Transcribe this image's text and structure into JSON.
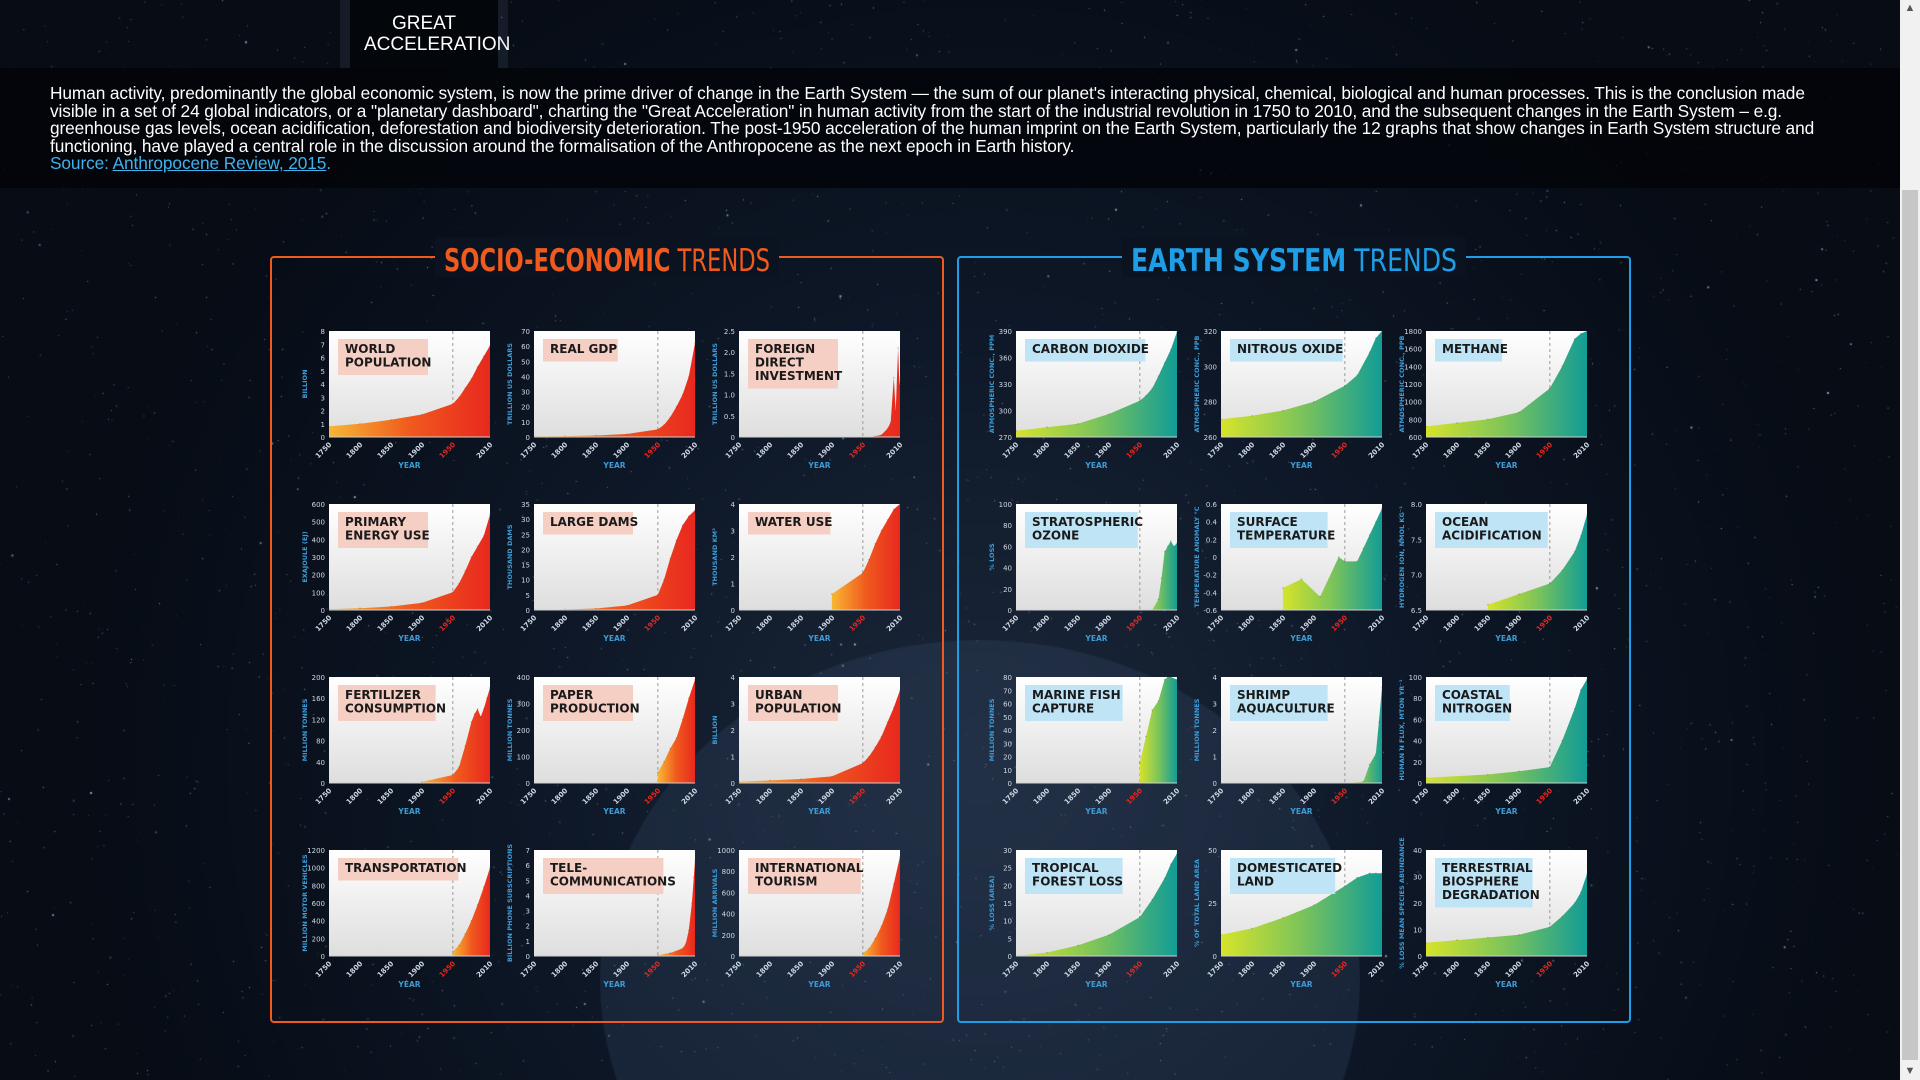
{
  "tab": {
    "title": "GREAT ACCELERATION"
  },
  "intro": {
    "text": "Human activity, predominantly the global economic system, is now the prime driver of change in the Earth System — the sum of our planet's interacting physical, chemical, biological and human processes. This is the conclusion made visible in a set of 24 global indicators, or a \"planetary dashboard\", charting the \"Great Acceleration\" in human activity from the start of the industrial revolution in 1750 to 2010, and the subsequent changes in the Earth System – e.g. greenhouse gas levels, ocean acidification, deforestation and biodiversity deterioration. The post-1950 acceleration of the human imprint on the Earth System, particularly the 12 graphs that show changes in Earth System structure and functioning, have played a central role in the discussion around the formalisation of the Anthropocene as the next epoch in Earth history.",
    "source_prefix": "Source: ",
    "source_link": "Anthropocene Review, 2015",
    "source_suffix": "."
  },
  "x_axis": {
    "label": "YEAR",
    "ticks": [
      "1750",
      "1800",
      "1850",
      "1900",
      "1950",
      "2010"
    ],
    "highlight_tick": "1950"
  },
  "colors": {
    "socio_accent": "#f05a1e",
    "earth_accent": "#1e9ee6",
    "socio_title_bg": "#f5cfc3",
    "earth_title_bg": "#bfe4f6",
    "socio_fill": [
      "#f7b733",
      "#f05a1e",
      "#e8281e"
    ],
    "earth_fill": [
      "#d6e32a",
      "#7cc45a",
      "#129c96"
    ]
  },
  "chart_data": [
    {
      "group": "SOCIO-ECONOMIC TRENDS",
      "group_bold": "SOCIO-ECONOMIC",
      "group_light": " TRENDS",
      "theme": "socio",
      "charts": [
        {
          "title": [
            "WORLD",
            "POPULATION"
          ],
          "type": "area",
          "ylabel": "BILLION",
          "yticks": [
            "0",
            "1",
            "2",
            "3",
            "4",
            "5",
            "6",
            "7",
            "8"
          ],
          "ylim": [
            0,
            8
          ],
          "x": [
            1750,
            1800,
            1850,
            1900,
            1950,
            1960,
            1970,
            1980,
            1990,
            2000,
            2010
          ],
          "y": [
            0.8,
            1.0,
            1.3,
            1.7,
            2.5,
            3.0,
            3.7,
            4.4,
            5.3,
            6.1,
            6.9
          ]
        },
        {
          "title": [
            "REAL GDP"
          ],
          "type": "area",
          "ylabel": "TRILLION US DOLLARS",
          "yticks": [
            "0",
            "10",
            "20",
            "30",
            "40",
            "50",
            "60",
            "70"
          ],
          "ylim": [
            0,
            70
          ],
          "x": [
            1750,
            1800,
            1850,
            1900,
            1950,
            1960,
            1970,
            1980,
            1990,
            2000,
            2010
          ],
          "y": [
            0.4,
            0.6,
            1.0,
            2.0,
            5.0,
            8.0,
            13,
            20,
            28,
            40,
            62
          ]
        },
        {
          "title": [
            "FOREIGN",
            "DIRECT",
            "INVESTMENT"
          ],
          "type": "area",
          "ylabel": "TRILLION US DOLLARS",
          "yticks": [
            "0",
            "0.5",
            "1.0",
            "1.5",
            "2.0",
            "2.5"
          ],
          "ylim": [
            0,
            2.5
          ],
          "x": [
            1750,
            1950,
            1970,
            1980,
            1990,
            1995,
            2000,
            2003,
            2007,
            2009,
            2010
          ],
          "y": [
            0,
            0,
            0.02,
            0.05,
            0.2,
            0.35,
            1.4,
            0.6,
            2.1,
            1.2,
            1.4
          ]
        },
        {
          "title": [
            "PRIMARY",
            "ENERGY USE"
          ],
          "type": "area",
          "ylabel": "EXAJOULE (EJ)",
          "yticks": [
            "0",
            "100",
            "200",
            "300",
            "400",
            "500",
            "600"
          ],
          "ylim": [
            0,
            600
          ],
          "x": [
            1750,
            1800,
            1850,
            1900,
            1950,
            1960,
            1970,
            1980,
            1990,
            2000,
            2010
          ],
          "y": [
            5,
            10,
            20,
            40,
            100,
            150,
            220,
            300,
            360,
            420,
            540
          ]
        },
        {
          "title": [
            "LARGE DAMS"
          ],
          "type": "area",
          "ylabel": "THOUSAND DAMS",
          "yticks": [
            "0",
            "5",
            "10",
            "15",
            "20",
            "25",
            "30",
            "35"
          ],
          "ylim": [
            0,
            35
          ],
          "x": [
            1750,
            1800,
            1850,
            1900,
            1950,
            1960,
            1970,
            1980,
            1990,
            2000,
            2010
          ],
          "y": [
            0.1,
            0.2,
            0.5,
            1.5,
            5.0,
            10,
            17,
            23,
            28,
            31,
            33
          ]
        },
        {
          "title": [
            "WATER USE"
          ],
          "type": "area",
          "ylabel": "THOUSAND KM³",
          "yticks": [
            "0",
            "1",
            "2",
            "3",
            "4"
          ],
          "ylim": [
            0,
            4
          ],
          "x": [
            1900,
            1950,
            1960,
            1970,
            1980,
            1990,
            2000,
            2010
          ],
          "y": [
            0.6,
            1.4,
            1.9,
            2.5,
            3.0,
            3.4,
            3.8,
            4.0
          ]
        },
        {
          "title": [
            "FERTILIZER",
            "CONSUMPTION"
          ],
          "type": "area",
          "ylabel": "MILLION TONNES",
          "yticks": [
            "0",
            "40",
            "80",
            "120",
            "160",
            "200"
          ],
          "ylim": [
            0,
            200
          ],
          "x": [
            1900,
            1950,
            1960,
            1970,
            1980,
            1985,
            1990,
            1995,
            2000,
            2005,
            2010
          ],
          "y": [
            2,
            15,
            30,
            70,
            115,
            130,
            140,
            125,
            140,
            160,
            180
          ]
        },
        {
          "title": [
            "PAPER",
            "PRODUCTION"
          ],
          "type": "area",
          "ylabel": "MILLION TONNES",
          "yticks": [
            "0",
            "100",
            "200",
            "300",
            "400"
          ],
          "ylim": [
            0,
            400
          ],
          "x": [
            1950,
            1960,
            1970,
            1980,
            1990,
            2000,
            2010
          ],
          "y": [
            40,
            80,
            130,
            170,
            240,
            320,
            390
          ]
        },
        {
          "title": [
            "URBAN",
            "POPULATION"
          ],
          "type": "area",
          "ylabel": "BILLION",
          "yticks": [
            "0",
            "1",
            "2",
            "3",
            "4"
          ],
          "ylim": [
            0,
            4
          ],
          "x": [
            1750,
            1800,
            1850,
            1900,
            1950,
            1960,
            1970,
            1980,
            1990,
            2000,
            2010
          ],
          "y": [
            0.05,
            0.1,
            0.15,
            0.25,
            0.75,
            1.0,
            1.35,
            1.75,
            2.3,
            2.85,
            3.5
          ]
        },
        {
          "title": [
            "TRANSPORTATION"
          ],
          "type": "area",
          "ylabel": "MILLION MOTOR VEHICLES",
          "yticks": [
            "0",
            "200",
            "400",
            "600",
            "800",
            "1000",
            "1200"
          ],
          "ylim": [
            0,
            1200
          ],
          "x": [
            1950,
            1960,
            1970,
            1980,
            1990,
            2000,
            2010
          ],
          "y": [
            50,
            120,
            250,
            400,
            580,
            780,
            1000
          ]
        },
        {
          "title": [
            "TELE-",
            "COMMUNICATIONS"
          ],
          "type": "area",
          "ylabel": "BILLION PHONE SUBSCRIPTIONS",
          "yticks": [
            "0",
            "1",
            "2",
            "3",
            "4",
            "5",
            "6",
            "7"
          ],
          "ylim": [
            0,
            7
          ],
          "x": [
            1950,
            1970,
            1990,
            1995,
            2000,
            2005,
            2008,
            2010
          ],
          "y": [
            0.05,
            0.2,
            0.5,
            0.8,
            1.7,
            3.5,
            5.2,
            6.3
          ]
        },
        {
          "title": [
            "INTERNATIONAL",
            "TOURISM"
          ],
          "type": "area",
          "ylabel": "MILLION ARRIVALS",
          "yticks": [
            "0",
            "200",
            "400",
            "600",
            "800",
            "1000"
          ],
          "ylim": [
            0,
            1000
          ],
          "x": [
            1950,
            1960,
            1970,
            1980,
            1990,
            2000,
            2010
          ],
          "y": [
            25,
            70,
            165,
            280,
            440,
            680,
            940
          ]
        }
      ]
    },
    {
      "group": "EARTH SYSTEM TRENDS",
      "group_bold": "EARTH SYSTEM",
      "group_light": " TRENDS",
      "theme": "earth",
      "charts": [
        {
          "title": [
            "CARBON DIOXIDE"
          ],
          "type": "area",
          "ylabel": "ATMOSPHERIC CONC., PPM",
          "yticks": [
            "270",
            "300",
            "330",
            "360",
            "390"
          ],
          "ylim": [
            270,
            390
          ],
          "x": [
            1750,
            1800,
            1850,
            1900,
            1950,
            1960,
            1970,
            1980,
            1990,
            2000,
            2010
          ],
          "y": [
            277,
            281,
            285,
            296,
            311,
            317,
            325,
            339,
            354,
            369,
            389
          ]
        },
        {
          "title": [
            "NITROUS OXIDE"
          ],
          "type": "area",
          "ylabel": "ATMOSPHERIC CONC., PPB",
          "yticks": [
            "260",
            "280",
            "300",
            "320"
          ],
          "ylim": [
            260,
            320
          ],
          "x": [
            1750,
            1800,
            1850,
            1900,
            1950,
            1970,
            1990,
            2000,
            2010
          ],
          "y": [
            270,
            272,
            275,
            280,
            289,
            295,
            308,
            316,
            323
          ]
        },
        {
          "title": [
            "METHANE"
          ],
          "type": "area",
          "ylabel": "ATMOSPHERIC CONC., PPB",
          "yticks": [
            "600",
            "800",
            "1000",
            "1200",
            "1400",
            "1600",
            "1800"
          ],
          "ylim": [
            600,
            1800
          ],
          "x": [
            1750,
            1800,
            1850,
            1900,
            1950,
            1970,
            1990,
            2000,
            2010
          ],
          "y": [
            720,
            760,
            800,
            880,
            1150,
            1400,
            1710,
            1770,
            1800
          ]
        },
        {
          "title": [
            "STRATOSPHERIC",
            "OZONE"
          ],
          "type": "area",
          "ylabel": "% LOSS",
          "yticks": [
            "0",
            "20",
            "40",
            "60",
            "80",
            "100"
          ],
          "ylim": [
            0,
            100
          ],
          "x": [
            1950,
            1970,
            1980,
            1985,
            1990,
            1995,
            2000,
            2005,
            2010
          ],
          "y": [
            0,
            0,
            10,
            30,
            55,
            60,
            65,
            60,
            63
          ]
        },
        {
          "title": [
            "SURFACE",
            "TEMPERATURE"
          ],
          "type": "area",
          "ylabel": "TEMPERATURE ANOMALY °C",
          "yticks": [
            "-0.6",
            "-0.4",
            "-0.2",
            "0",
            "0.2",
            "0.4",
            "0.6"
          ],
          "ylim": [
            -0.6,
            0.6
          ],
          "x": [
            1850,
            1880,
            1910,
            1940,
            1950,
            1970,
            1980,
            1990,
            2000,
            2010
          ],
          "y": [
            -0.35,
            -0.25,
            -0.45,
            0.0,
            -0.05,
            -0.05,
            0.1,
            0.25,
            0.4,
            0.55
          ]
        },
        {
          "title": [
            "OCEAN",
            "ACIDIFICATION"
          ],
          "type": "area",
          "ylabel": "HYDROGEN ION, NMOL KG⁻¹",
          "yticks": [
            "6.5",
            "7.0",
            "7.5",
            "8.0"
          ],
          "ylim": [
            6.5,
            8.5
          ],
          "x": [
            1850,
            1900,
            1950,
            1970,
            1990,
            2000,
            2010
          ],
          "y": [
            6.6,
            6.8,
            7.0,
            7.25,
            7.6,
            7.9,
            8.3
          ]
        },
        {
          "title": [
            "MARINE FISH",
            "CAPTURE"
          ],
          "type": "area",
          "ylabel": "MILLION TONNES",
          "yticks": [
            "0",
            "10",
            "20",
            "30",
            "40",
            "50",
            "60",
            "70",
            "80"
          ],
          "ylim": [
            0,
            80
          ],
          "x": [
            1950,
            1960,
            1970,
            1980,
            1990,
            1995,
            2000,
            2010
          ],
          "y": [
            15,
            35,
            55,
            62,
            78,
            82,
            80,
            78
          ]
        },
        {
          "title": [
            "SHRIMP",
            "AQUACULTURE"
          ],
          "type": "area",
          "ylabel": "MILLION TONNES",
          "yticks": [
            "0",
            "1",
            "2",
            "3",
            "4"
          ],
          "ylim": [
            0,
            4
          ],
          "x": [
            1950,
            1980,
            1990,
            2000,
            2005,
            2010
          ],
          "y": [
            0,
            0.05,
            0.7,
            1.1,
            2.3,
            3.6
          ]
        },
        {
          "title": [
            "COASTAL",
            "NITROGEN"
          ],
          "type": "area",
          "ylabel": "HUMAN N FLUX, MTON YR⁻¹",
          "yticks": [
            "0",
            "20",
            "40",
            "60",
            "80",
            "100"
          ],
          "ylim": [
            0,
            100
          ],
          "x": [
            1750,
            1850,
            1900,
            1950,
            1970,
            1990,
            2000,
            2010
          ],
          "y": [
            5,
            8,
            11,
            15,
            40,
            70,
            88,
            98
          ]
        },
        {
          "title": [
            "TROPICAL",
            "FOREST LOSS"
          ],
          "type": "area",
          "ylabel": "% LOSS (AREA)",
          "yticks": [
            "0",
            "5",
            "10",
            "15",
            "20",
            "25",
            "30"
          ],
          "ylim": [
            0,
            30
          ],
          "x": [
            1750,
            1800,
            1850,
            1900,
            1950,
            1970,
            1990,
            2000,
            2010
          ],
          "y": [
            0,
            1,
            3,
            6,
            11,
            16,
            22,
            26,
            29
          ]
        },
        {
          "title": [
            "DOMESTICATED",
            "LAND"
          ],
          "type": "area",
          "ylabel": "% OF TOTAL LAND AREA",
          "yticks": [
            "0",
            "25",
            "50"
          ],
          "ylim": [
            0,
            50
          ],
          "x": [
            1750,
            1800,
            1850,
            1900,
            1950,
            1970,
            1990,
            2000,
            2010
          ],
          "y": [
            10,
            13,
            18,
            24,
            33,
            37,
            39,
            39,
            39
          ]
        },
        {
          "title": [
            "TERRESTRIAL",
            "BIOSPHERE",
            "DEGRADATION"
          ],
          "type": "area",
          "ylabel": "% LOSS MEAN SPECIES ABUNDANCE",
          "yticks": [
            "0",
            "10",
            "20",
            "30",
            "40"
          ],
          "ylim": [
            0,
            40
          ],
          "x": [
            1750,
            1800,
            1850,
            1900,
            1950,
            1970,
            1990,
            2000,
            2010
          ],
          "y": [
            5,
            6,
            7,
            8,
            11,
            15,
            20,
            24,
            31
          ]
        }
      ]
    }
  ]
}
